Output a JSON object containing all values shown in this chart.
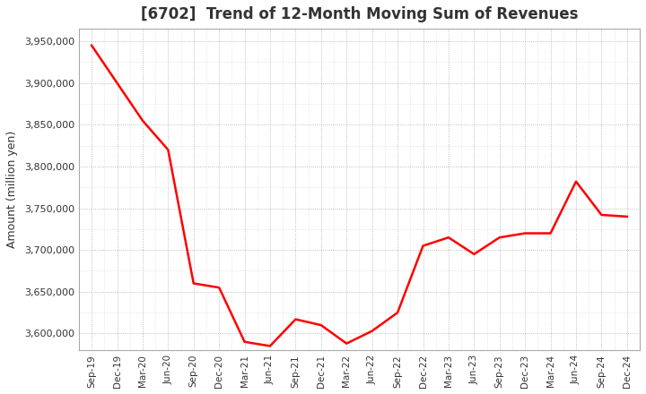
{
  "title": "[6702]  Trend of 12-Month Moving Sum of Revenues",
  "ylabel": "Amount (million yen)",
  "line_color": "#FF0000",
  "line_width": 1.8,
  "fig_background_color": "#FFFFFF",
  "plot_background_color": "#FFFFFF",
  "grid_color": "#999999",
  "title_color": "#333333",
  "tick_color": "#333333",
  "ylim": [
    3580000,
    3965000
  ],
  "yticks": [
    3600000,
    3650000,
    3700000,
    3750000,
    3800000,
    3850000,
    3900000,
    3950000
  ],
  "x_labels": [
    "Sep-19",
    "Dec-19",
    "Mar-20",
    "Jun-20",
    "Sep-20",
    "Dec-20",
    "Mar-21",
    "Jun-21",
    "Sep-21",
    "Dec-21",
    "Mar-22",
    "Jun-22",
    "Sep-22",
    "Dec-22",
    "Mar-23",
    "Jun-23",
    "Sep-23",
    "Dec-23",
    "Mar-24",
    "Jun-24",
    "Sep-24",
    "Dec-24"
  ],
  "values": [
    3945000,
    3900000,
    3855000,
    3820000,
    3660000,
    3655000,
    3590000,
    3585000,
    3617000,
    3610000,
    3588000,
    3603000,
    3625000,
    3705000,
    3715000,
    3695000,
    3715000,
    3720000,
    3720000,
    3782000,
    3742000,
    3740000
  ]
}
